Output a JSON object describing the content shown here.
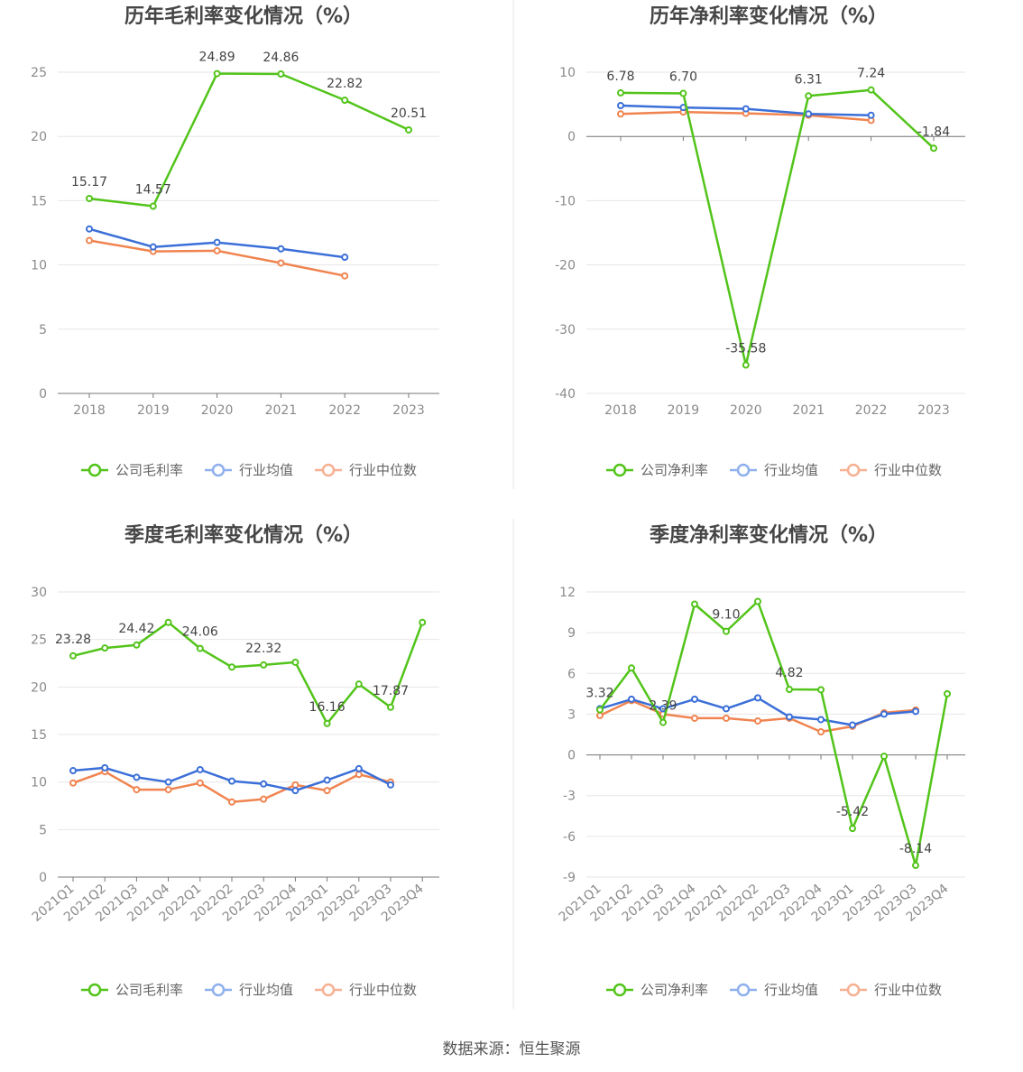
{
  "source_text": "数据来源：恒生聚源",
  "chart_data": [
    {
      "type": "line",
      "title": "历年毛利率变化情况（%）",
      "categories": [
        "2018",
        "2019",
        "2020",
        "2021",
        "2022",
        "2023"
      ],
      "ylim": [
        0,
        25
      ],
      "yticks": [
        0,
        5,
        10,
        15,
        20,
        25
      ],
      "labeled_series": 0,
      "label_indices": [
        0,
        1,
        2,
        3,
        4,
        5
      ],
      "rotate_x": false,
      "series": [
        {
          "name": "公司毛利率",
          "color": "#52c41a",
          "values": [
            15.17,
            14.57,
            24.89,
            24.86,
            22.82,
            20.51
          ],
          "labels": [
            "15.17",
            "14.57",
            "24.89",
            "24.86",
            "22.82",
            "20.51"
          ]
        },
        {
          "name": "行业均值",
          "color": "#3b6fd8",
          "values": [
            12.8,
            11.4,
            11.75,
            11.25,
            10.6,
            null
          ]
        },
        {
          "name": "行业中位数",
          "color": "#f08450",
          "values": [
            11.9,
            11.05,
            11.1,
            10.15,
            9.15,
            null
          ]
        }
      ]
    },
    {
      "type": "line",
      "title": "历年净利率变化情况（%）",
      "categories": [
        "2018",
        "2019",
        "2020",
        "2021",
        "2022",
        "2023"
      ],
      "ylim": [
        -40,
        10
      ],
      "yticks": [
        -40,
        -30,
        -20,
        -10,
        0,
        10
      ],
      "labeled_series": 0,
      "label_indices": [
        0,
        1,
        2,
        3,
        4,
        5
      ],
      "rotate_x": false,
      "series": [
        {
          "name": "公司净利率",
          "color": "#52c41a",
          "values": [
            6.78,
            6.7,
            -35.58,
            6.31,
            7.24,
            -1.84
          ],
          "labels": [
            "6.78",
            "6.70",
            "-35.58",
            "6.31",
            "7.24",
            "-1.84"
          ]
        },
        {
          "name": "行业均值",
          "color": "#3b6fd8",
          "values": [
            4.8,
            4.5,
            4.3,
            3.5,
            3.3,
            null
          ]
        },
        {
          "name": "行业中位数",
          "color": "#f08450",
          "values": [
            3.5,
            3.8,
            3.6,
            3.3,
            2.5,
            null
          ]
        }
      ]
    },
    {
      "type": "line",
      "title": "季度毛利率变化情况（%）",
      "categories": [
        "2021Q1",
        "2021Q2",
        "2021Q3",
        "2021Q4",
        "2022Q1",
        "2022Q2",
        "2022Q3",
        "2022Q4",
        "2023Q1",
        "2023Q2",
        "2023Q3",
        "2023Q4"
      ],
      "ylim": [
        0,
        30
      ],
      "yticks": [
        0,
        5,
        10,
        15,
        20,
        25,
        30
      ],
      "labeled_series": 0,
      "label_indices": [
        0,
        2,
        4,
        6,
        8,
        10
      ],
      "rotate_x": true,
      "series": [
        {
          "name": "公司毛利率",
          "color": "#52c41a",
          "values": [
            23.28,
            24.1,
            24.42,
            26.8,
            24.06,
            22.1,
            22.32,
            22.6,
            16.16,
            20.3,
            17.87,
            26.8
          ],
          "labels": [
            "23.28",
            "",
            "24.42",
            "",
            "24.06",
            "",
            "22.32",
            "",
            "16.16",
            "",
            "17.87",
            ""
          ]
        },
        {
          "name": "行业均值",
          "color": "#3b6fd8",
          "values": [
            11.2,
            11.5,
            10.5,
            10.0,
            11.3,
            10.1,
            9.8,
            9.1,
            10.2,
            11.4,
            9.7,
            null
          ]
        },
        {
          "name": "行业中位数",
          "color": "#f08450",
          "values": [
            9.9,
            11.1,
            9.2,
            9.2,
            9.9,
            7.9,
            8.2,
            9.7,
            9.1,
            10.8,
            10.0,
            null
          ]
        }
      ]
    },
    {
      "type": "line",
      "title": "季度净利率变化情况（%）",
      "categories": [
        "2021Q1",
        "2021Q2",
        "2021Q3",
        "2021Q4",
        "2022Q1",
        "2022Q2",
        "2022Q3",
        "2022Q4",
        "2023Q1",
        "2023Q2",
        "2023Q3",
        "2023Q4"
      ],
      "ylim": [
        -9,
        12
      ],
      "yticks": [
        -9,
        -6,
        -3,
        0,
        3,
        6,
        9,
        12
      ],
      "labeled_series": 0,
      "label_indices": [
        0,
        2,
        4,
        6,
        8,
        10
      ],
      "rotate_x": true,
      "series": [
        {
          "name": "公司净利率",
          "color": "#52c41a",
          "values": [
            3.32,
            6.4,
            2.39,
            11.1,
            9.1,
            11.3,
            4.82,
            4.8,
            -5.42,
            -0.1,
            -8.14,
            4.5
          ],
          "labels": [
            "3.32",
            "",
            "2.39",
            "",
            "9.10",
            "",
            "4.82",
            "",
            "-5.42",
            "",
            "-8.14",
            ""
          ]
        },
        {
          "name": "行业均值",
          "color": "#3b6fd8",
          "values": [
            3.4,
            4.1,
            3.4,
            4.1,
            3.4,
            4.2,
            2.8,
            2.6,
            2.2,
            3.0,
            3.2,
            null
          ]
        },
        {
          "name": "行业中位数",
          "color": "#f08450",
          "values": [
            2.9,
            4.0,
            3.0,
            2.7,
            2.7,
            2.5,
            2.7,
            1.7,
            2.1,
            3.1,
            3.3,
            null
          ]
        }
      ]
    }
  ]
}
